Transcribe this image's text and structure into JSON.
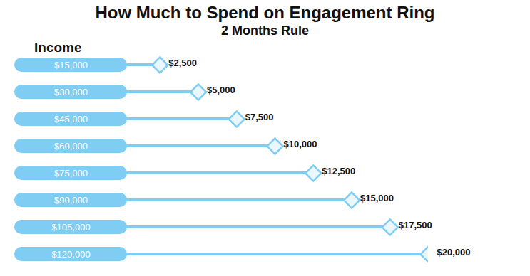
{
  "chart_data": {
    "type": "bar",
    "orientation": "horizontal",
    "title": "How Much to Spend on Engagement Ring",
    "subtitle": "2 Months Rule",
    "y_label": "Income",
    "categories": [
      "$15,000",
      "$30,000",
      "$45,000",
      "$60,000",
      "$75,000",
      "$90,000",
      "$105,000",
      "$120,000"
    ],
    "values": [
      2500,
      5000,
      7500,
      10000,
      12500,
      15000,
      17500,
      20000
    ],
    "value_labels": [
      "$2,500",
      "$5,000",
      "$7,500",
      "$10,000",
      "$12,500",
      "$15,000",
      "$17,500",
      "$20,000"
    ],
    "xlim": [
      0,
      20000
    ],
    "xticks": [],
    "tick_labels": "y",
    "data_labels": true,
    "marker": "diamond",
    "color": "#7fcdf2",
    "grid": false
  }
}
